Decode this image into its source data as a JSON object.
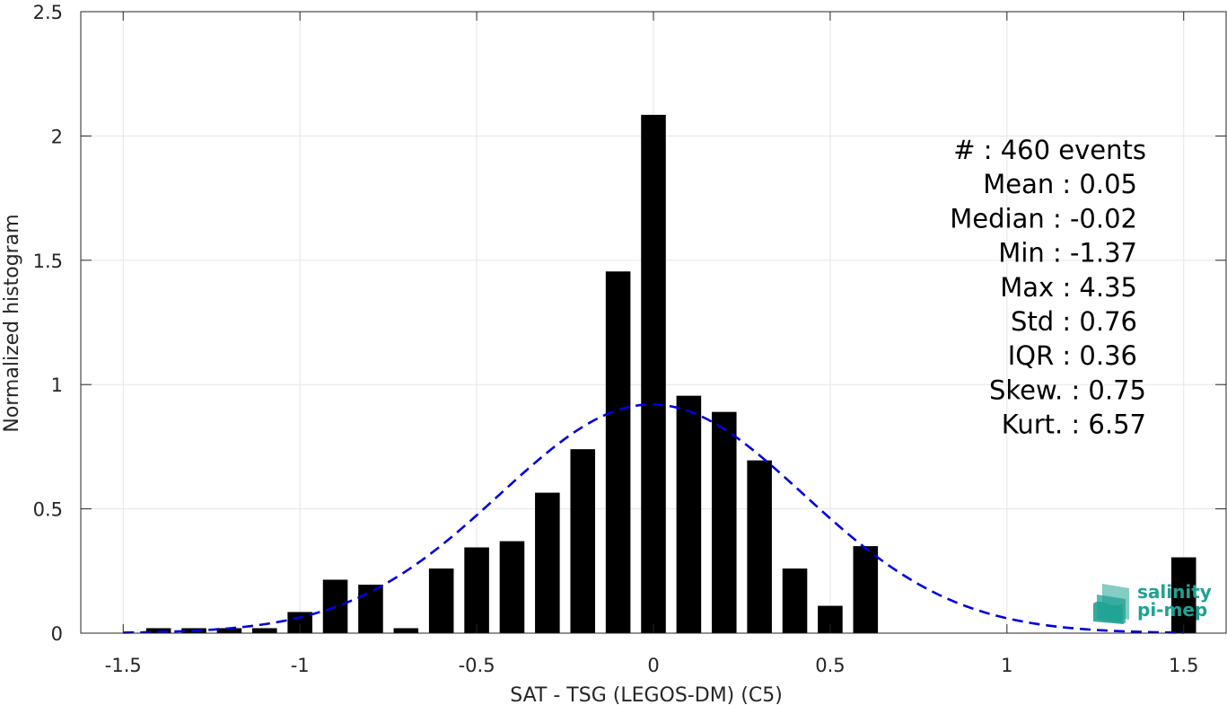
{
  "chart_data": {
    "type": "bar",
    "xlabel": "SAT - TSG (LEGOS-DM) (C5)",
    "ylabel": "Normalized histogram",
    "xlim": [
      -1.62,
      1.62
    ],
    "ylim": [
      0,
      2.5
    ],
    "grid": true,
    "xticks": [
      -1.5,
      -1,
      -0.5,
      0,
      0.5,
      1,
      1.5
    ],
    "xtick_labels": [
      "-1.5",
      "-1",
      "-0.5",
      "0",
      "0.5",
      "1",
      "1.5"
    ],
    "yticks": [
      0,
      0.5,
      1,
      1.5,
      2,
      2.5
    ],
    "ytick_labels": [
      "0",
      "0.5",
      "1",
      "1.5",
      "2",
      "2.5"
    ],
    "bin_width": 0.1,
    "bar_width": 0.07,
    "bars": {
      "x": [
        -1.4,
        -1.3,
        -1.2,
        -1.1,
        -1.0,
        -0.9,
        -0.8,
        -0.7,
        -0.6,
        -0.5,
        -0.4,
        -0.3,
        -0.2,
        -0.1,
        0.0,
        0.1,
        0.2,
        0.3,
        0.4,
        0.5,
        0.6,
        1.5
      ],
      "values": [
        0.02,
        0.02,
        0.02,
        0.02,
        0.085,
        0.215,
        0.195,
        0.02,
        0.26,
        0.345,
        0.37,
        0.565,
        0.74,
        1.455,
        2.085,
        0.955,
        0.89,
        0.695,
        0.26,
        0.11,
        0.35,
        0.305
      ],
      "color": "#000000"
    },
    "fit_curve": {
      "style": "dashed",
      "color": "#0000dd",
      "mean": -0.005,
      "peak": 0.92,
      "sigma": 0.43,
      "x_range": [
        -1.5,
        1.5
      ]
    },
    "stats": [
      {
        "label": "#  : 460 events",
        "anchor": "end",
        "xshift": 10
      },
      {
        "label": "Mean : 0.05",
        "anchor": "end",
        "xshift": 0
      },
      {
        "label": "Median : -0.02",
        "anchor": "end",
        "xshift": 0
      },
      {
        "label": "Min : -1.37",
        "anchor": "end",
        "xshift": 0
      },
      {
        "label": "Max : 4.35",
        "anchor": "end",
        "xshift": 0
      },
      {
        "label": "Std : 0.76",
        "anchor": "end",
        "xshift": 0
      },
      {
        "label": "IQR : 0.36",
        "anchor": "end",
        "xshift": 0
      },
      {
        "label": "Skew. : 0.75",
        "anchor": "end",
        "xshift": 10
      },
      {
        "label": "Kurt. : 6.57",
        "anchor": "end",
        "xshift": 10
      }
    ]
  },
  "logo": {
    "line1": "salinity",
    "line2": "pi-mep",
    "color": "#1fa294"
  }
}
